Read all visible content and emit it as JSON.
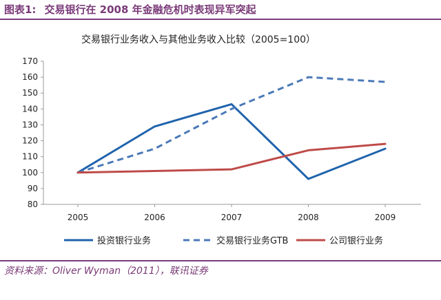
{
  "header": {
    "figure_label": "图表1:",
    "title": "交易银行在 2008 年金融危机时表现异军突起"
  },
  "chart_data": {
    "type": "line",
    "title": "交易银行业务收入与其他业务收入比较（2005=100）",
    "xlabel": "",
    "ylabel": "",
    "x": [
      "2005",
      "2006",
      "2007",
      "2008",
      "2009"
    ],
    "ylim": [
      80,
      170
    ],
    "yticks": [
      80,
      90,
      100,
      110,
      120,
      130,
      140,
      150,
      160,
      170
    ],
    "grid": false,
    "legend_position": "bottom",
    "series": [
      {
        "name": "投资银行业务",
        "values": [
          100,
          129,
          143,
          96,
          115
        ],
        "color": "#1f63ac",
        "dash": "solid"
      },
      {
        "name": "交易银行业务GTB",
        "values": [
          100,
          115,
          140,
          160,
          157
        ],
        "color": "#4a79b8",
        "dash": "dashed"
      },
      {
        "name": "公司银行业务",
        "values": [
          100,
          101,
          102,
          114,
          118
        ],
        "color": "#be4b48",
        "dash": "solid"
      }
    ]
  },
  "source": {
    "text": "资料来源：Oliver Wyman（2011），联讯证券"
  }
}
